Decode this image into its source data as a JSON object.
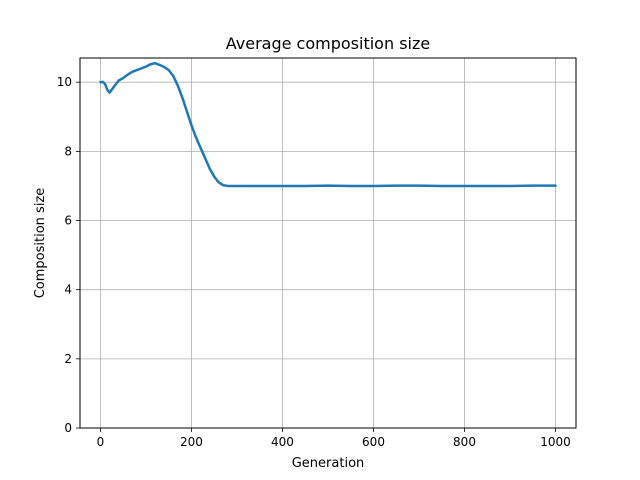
{
  "chart_data": {
    "type": "line",
    "title": "Average composition size",
    "xlabel": "Generation",
    "ylabel": "Composition size",
    "xlim": [
      -45,
      1045
    ],
    "ylim": [
      0,
      10.7
    ],
    "grid": true,
    "x_ticks": [
      0,
      200,
      400,
      600,
      800,
      1000
    ],
    "y_ticks": [
      0,
      2,
      4,
      6,
      8,
      10
    ],
    "x_tick_labels": [
      "0",
      "200",
      "400",
      "600",
      "800",
      "1000"
    ],
    "y_tick_labels": [
      "0",
      "2",
      "4",
      "6",
      "8",
      "10"
    ],
    "series": [
      {
        "color": "#1f77b4",
        "x": [
          0,
          5,
          10,
          15,
          20,
          30,
          40,
          50,
          60,
          70,
          80,
          90,
          100,
          110,
          120,
          130,
          140,
          150,
          160,
          170,
          180,
          190,
          200,
          210,
          220,
          230,
          240,
          250,
          260,
          270,
          280,
          300,
          350,
          400,
          450,
          500,
          550,
          600,
          650,
          700,
          750,
          800,
          850,
          900,
          950,
          1000
        ],
        "y": [
          10.0,
          10.01,
          9.95,
          9.78,
          9.7,
          9.88,
          10.05,
          10.12,
          10.22,
          10.3,
          10.35,
          10.4,
          10.45,
          10.52,
          10.55,
          10.5,
          10.44,
          10.35,
          10.18,
          9.9,
          9.55,
          9.15,
          8.75,
          8.4,
          8.1,
          7.8,
          7.5,
          7.27,
          7.1,
          7.02,
          7.0,
          7.0,
          7.0,
          7.0,
          7.0,
          7.01,
          7.0,
          7.0,
          7.01,
          7.01,
          7.0,
          7.0,
          7.0,
          7.0,
          7.01,
          7.01
        ]
      }
    ]
  }
}
